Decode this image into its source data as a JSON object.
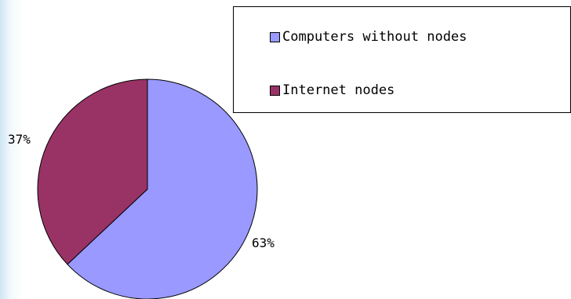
{
  "chart_data": {
    "type": "pie",
    "title": "",
    "categories": [
      "Computers without nodes",
      "Internet nodes"
    ],
    "values": [
      63,
      37
    ],
    "data_labels": [
      "63%",
      "37%"
    ],
    "colors": [
      "#9999ff",
      "#993366"
    ],
    "legend_position": "top-right"
  }
}
